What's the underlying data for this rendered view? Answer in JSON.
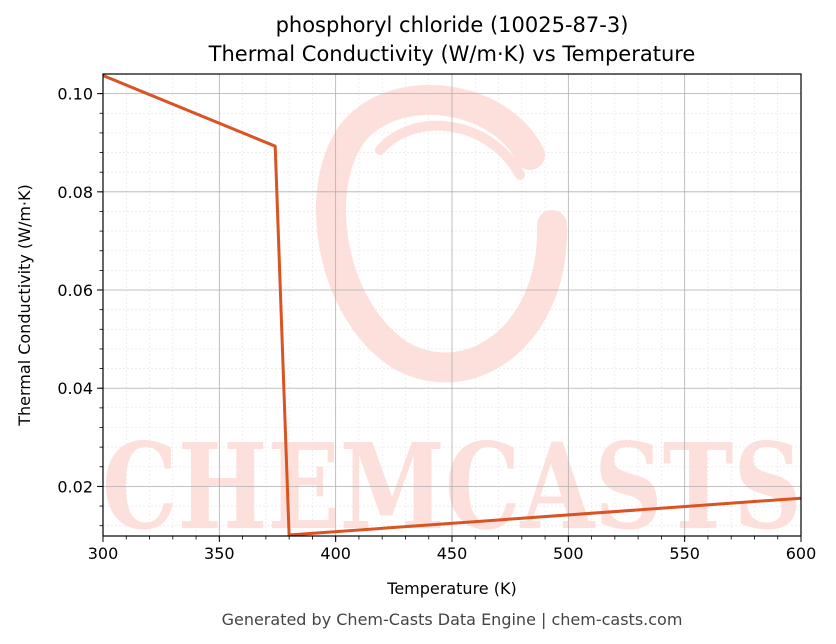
{
  "chart_data": {
    "type": "line",
    "title": "phosphoryl chloride (10025-87-3)",
    "subtitle": "Thermal Conductivity (W/m·K) vs Temperature",
    "xlabel": "Temperature (K)",
    "ylabel": "Thermal Conductivity (W/m·K)",
    "xlim": [
      300,
      600
    ],
    "ylim": [
      0.0099,
      0.104
    ],
    "xticks": [
      300,
      350,
      400,
      450,
      500,
      550,
      600
    ],
    "xtick_labels": [
      "300",
      "350",
      "400",
      "450",
      "500",
      "550",
      "600"
    ],
    "yticks": [
      0.02,
      0.04,
      0.06,
      0.08,
      0.1
    ],
    "ytick_labels": [
      "0.02",
      "0.04",
      "0.06",
      "0.08",
      "0.10"
    ],
    "grid": true,
    "legend": "none",
    "series": [
      {
        "color": "#d95323",
        "x": [
          300,
          374,
          380,
          600
        ],
        "y": [
          0.1037,
          0.0893,
          0.0101,
          0.0176
        ]
      }
    ]
  },
  "watermark": {
    "text": "CHEMCASTS",
    "color": "#fde0db"
  },
  "footer": {
    "text": "Generated by Chem-Casts Data Engine | chem-casts.com"
  }
}
